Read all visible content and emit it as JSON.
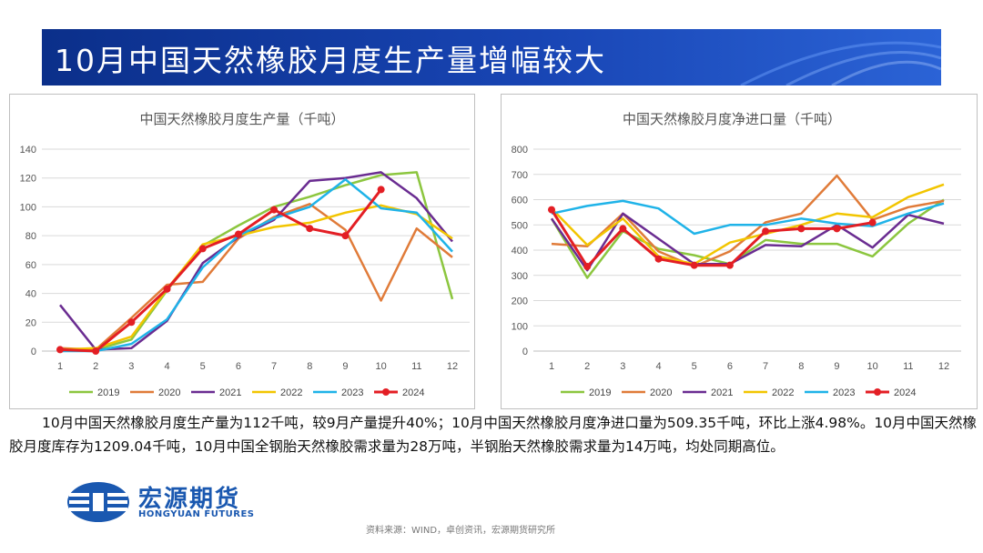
{
  "header": {
    "title": "10月中国天然橡胶月度生产量增幅较大"
  },
  "summary": "10月中国天然橡胶月度生产量为112千吨，较9月产量提升40%；10月中国天然橡胶月度净进口量为509.35千吨，环比上涨4.98%。10月中国天然橡胶月度库存为1209.04千吨，10月中国全钢胎天然橡胶需求量为28万吨，半钢胎天然橡胶需求量为14万吨，均处同期高位。",
  "logo": {
    "cn": "宏源期货",
    "en": "HONGYUAN FUTURES"
  },
  "source": "资料来源：WIND，卓创资讯，宏源期货研究所",
  "chart_data": [
    {
      "type": "line",
      "title": "中国天然橡胶月度生产量（千吨）",
      "x": [
        1,
        2,
        3,
        4,
        5,
        6,
        7,
        8,
        9,
        10,
        11,
        12
      ],
      "ylim": [
        0,
        140
      ],
      "yticks": [
        0,
        20,
        40,
        60,
        80,
        100,
        120,
        140
      ],
      "grid": true,
      "legend": "bottom",
      "series": [
        {
          "name": "2019",
          "color": "#8cc63f",
          "values": [
            0,
            1,
            8,
            42,
            73,
            87,
            100,
            107,
            115,
            122,
            124,
            36
          ]
        },
        {
          "name": "2020",
          "color": "#e07b39",
          "values": [
            2,
            1,
            23,
            46,
            48,
            78,
            93,
            102,
            84,
            35,
            85,
            65
          ]
        },
        {
          "name": "2021",
          "color": "#6a2c91",
          "values": [
            32,
            1,
            2,
            21,
            61,
            79,
            91,
            118,
            120,
            124,
            106,
            76
          ]
        },
        {
          "name": "2022",
          "color": "#f2c500",
          "values": [
            1,
            2,
            10,
            43,
            74,
            80,
            86,
            89,
            96,
            101,
            95,
            78
          ]
        },
        {
          "name": "2023",
          "color": "#1fb3e8",
          "values": [
            0,
            0,
            5,
            22,
            58,
            80,
            92,
            100,
            119,
            99,
            96,
            69
          ]
        },
        {
          "name": "2024",
          "color": "#e31e24",
          "values": [
            1,
            0,
            20,
            43,
            71,
            81,
            98,
            85,
            80,
            112,
            null,
            null
          ]
        }
      ]
    },
    {
      "type": "line",
      "title": "中国天然橡胶月度净进口量（千吨）",
      "x": [
        1,
        2,
        3,
        4,
        5,
        6,
        7,
        8,
        9,
        10,
        11,
        12
      ],
      "ylim": [
        0,
        800
      ],
      "yticks": [
        0,
        100,
        200,
        300,
        400,
        500,
        600,
        700,
        800
      ],
      "grid": true,
      "legend": "bottom",
      "series": [
        {
          "name": "2019",
          "color": "#8cc63f",
          "values": [
            525,
            290,
            475,
            405,
            380,
            345,
            440,
            425,
            425,
            375,
            505,
            600
          ]
        },
        {
          "name": "2020",
          "color": "#e07b39",
          "values": [
            425,
            415,
            545,
            395,
            335,
            395,
            510,
            545,
            695,
            520,
            570,
            595
          ]
        },
        {
          "name": "2021",
          "color": "#6a2c91",
          "values": [
            525,
            320,
            545,
            445,
            345,
            345,
            420,
            415,
            500,
            410,
            540,
            505
          ]
        },
        {
          "name": "2022",
          "color": "#f2c500",
          "values": [
            565,
            420,
            525,
            375,
            345,
            430,
            465,
            500,
            545,
            530,
            610,
            660
          ]
        },
        {
          "name": "2023",
          "color": "#1fb3e8",
          "values": [
            545,
            575,
            595,
            565,
            465,
            500,
            500,
            525,
            505,
            495,
            545,
            585
          ]
        },
        {
          "name": "2024",
          "color": "#e31e24",
          "values": [
            560,
            335,
            485,
            365,
            340,
            340,
            475,
            485,
            485,
            509.35,
            null,
            null
          ]
        }
      ]
    }
  ]
}
